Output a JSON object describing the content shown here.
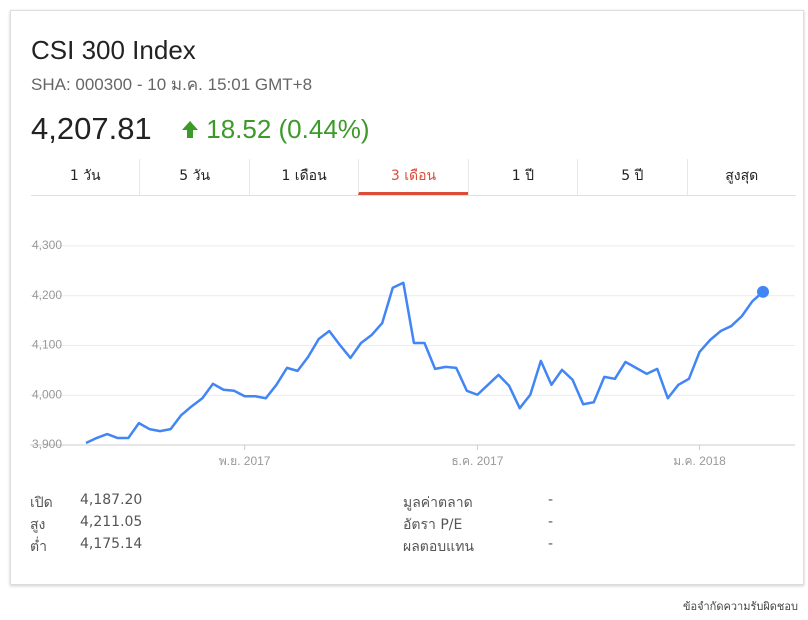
{
  "header": {
    "title": "CSI 300 Index",
    "subtitle": "SHA: 000300 - 10 ม.ค. 15:01 GMT+8",
    "price": "4,207.81",
    "change": "18.52 (0.44%)",
    "change_color": "#3c9a29"
  },
  "tabs": [
    "1 วัน",
    "5 วัน",
    "1 เดือน",
    "3 เดือน",
    "1 ปี",
    "5 ปี",
    "สูงสุด"
  ],
  "active_tab": 3,
  "chart_data": {
    "type": "line",
    "color": "#4285f4",
    "grid": true,
    "highlight_last": true,
    "categories": [
      null,
      null,
      null,
      null,
      null,
      null,
      null,
      null,
      null,
      null,
      null,
      null,
      null,
      null,
      null,
      "พ.ย. 2017",
      null,
      null,
      null,
      null,
      null,
      null,
      null,
      null,
      null,
      null,
      null,
      null,
      null,
      null,
      null,
      null,
      null,
      null,
      null,
      null,
      null,
      "ธ.ค. 2017",
      null,
      null,
      null,
      null,
      null,
      null,
      null,
      null,
      null,
      null,
      null,
      null,
      null,
      null,
      null,
      null,
      null,
      null,
      null,
      null,
      "ม.ค. 2018",
      null,
      null,
      null,
      null,
      null,
      null
    ],
    "values": [
      3904,
      3914,
      3922,
      3914,
      3914,
      3944,
      3932,
      3928,
      3932,
      3960,
      3978,
      3994,
      4023,
      4011,
      4009,
      3998,
      3998,
      3994,
      4021,
      4055,
      4049,
      4077,
      4113,
      4129,
      4101,
      4075,
      4105,
      4121,
      4145,
      4216,
      4226,
      4105,
      4105,
      4053,
      4057,
      4055,
      4009,
      4001,
      4021,
      4041,
      4019,
      3974,
      4001,
      4069,
      4021,
      4051,
      4031,
      3982,
      3986,
      4037,
      4033,
      4067,
      4055,
      4043,
      4053,
      3994,
      4021,
      4033,
      4087,
      4111,
      4129,
      4139,
      4159,
      4189,
      4207.81
    ],
    "ylim": [
      3890,
      4330
    ],
    "yticks": [
      {
        "value": 3900,
        "label": "3,900"
      },
      {
        "value": 4000,
        "label": "4,000"
      },
      {
        "value": 4100,
        "label": "4,100"
      },
      {
        "value": 4200,
        "label": "4,200"
      },
      {
        "value": 4300,
        "label": "4,300"
      }
    ]
  },
  "stats": {
    "left": [
      {
        "label": "เปิด",
        "value": "4,187.20"
      },
      {
        "label": "สูง",
        "value": "4,211.05"
      },
      {
        "label": "ต่ำ",
        "value": "4,175.14"
      }
    ],
    "right": [
      {
        "label": "มูลค่าตลาด",
        "value": "-"
      },
      {
        "label": "อัตรา P/E",
        "value": "-"
      },
      {
        "label": "ผลตอบแทน",
        "value": "-"
      }
    ]
  },
  "footer": "ข้อจำกัดความรับผิดชอบ"
}
